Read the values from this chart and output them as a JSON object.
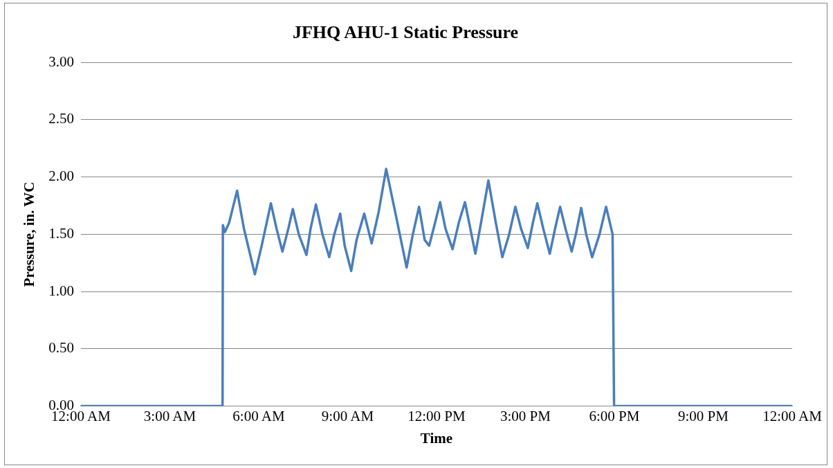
{
  "chart_data": {
    "type": "line",
    "title": "JFHQ AHU-1 Static Pressure",
    "xlabel": "Time",
    "ylabel": "Pressure, in. WC",
    "x": [
      0,
      4.78,
      4.79,
      4.86,
      5.0,
      5.27,
      5.5,
      5.87,
      6.1,
      6.41,
      6.6,
      6.8,
      7.0,
      7.15,
      7.35,
      7.61,
      7.75,
      7.93,
      8.15,
      8.38,
      8.55,
      8.75,
      8.9,
      9.12,
      9.3,
      9.56,
      9.81,
      10.05,
      10.3,
      10.6,
      10.99,
      11.2,
      11.41,
      11.6,
      11.75,
      11.95,
      12.12,
      12.3,
      12.54,
      12.75,
      12.96,
      13.1,
      13.31,
      13.5,
      13.75,
      14.0,
      14.22,
      14.45,
      14.66,
      14.85,
      15.08,
      15.25,
      15.4,
      15.6,
      15.82,
      16.0,
      16.17,
      16.35,
      16.56,
      16.7,
      16.88,
      17.05,
      17.25,
      17.5,
      17.72,
      17.94,
      17.99,
      24
    ],
    "series": [
      {
        "color": "#4a7ebb",
        "values": [
          0,
          0,
          1.58,
          1.52,
          1.6,
          1.88,
          1.55,
          1.15,
          1.4,
          1.77,
          1.55,
          1.35,
          1.55,
          1.72,
          1.5,
          1.32,
          1.55,
          1.76,
          1.5,
          1.3,
          1.5,
          1.68,
          1.4,
          1.18,
          1.45,
          1.68,
          1.42,
          1.7,
          2.07,
          1.7,
          1.21,
          1.5,
          1.74,
          1.45,
          1.4,
          1.6,
          1.78,
          1.55,
          1.37,
          1.6,
          1.78,
          1.6,
          1.33,
          1.6,
          1.97,
          1.6,
          1.3,
          1.5,
          1.74,
          1.55,
          1.38,
          1.6,
          1.77,
          1.55,
          1.33,
          1.55,
          1.74,
          1.55,
          1.35,
          1.5,
          1.73,
          1.5,
          1.3,
          1.5,
          1.74,
          1.5,
          0,
          0
        ]
      }
    ],
    "xlim": [
      0,
      24
    ],
    "xticks": [
      {
        "value": 0,
        "label": "12:00 AM"
      },
      {
        "value": 3,
        "label": "3:00 AM"
      },
      {
        "value": 6,
        "label": "6:00 AM"
      },
      {
        "value": 9,
        "label": "9:00 AM"
      },
      {
        "value": 12,
        "label": "12:00 PM"
      },
      {
        "value": 15,
        "label": "3:00 PM"
      },
      {
        "value": 18,
        "label": "6:00 PM"
      },
      {
        "value": 21,
        "label": "9:00 PM"
      },
      {
        "value": 24,
        "label": "12:00 AM"
      }
    ],
    "ylim": [
      0,
      3
    ],
    "yticks": [
      {
        "value": 0,
        "label": "0.00"
      },
      {
        "value": 0.5,
        "label": "0.50"
      },
      {
        "value": 1,
        "label": "1.00"
      },
      {
        "value": 1.5,
        "label": "1.50"
      },
      {
        "value": 2,
        "label": "2.00"
      },
      {
        "value": 2.5,
        "label": "2.50"
      },
      {
        "value": 3,
        "label": "3.00"
      }
    ],
    "grid": "y",
    "legend": false,
    "marker": "none",
    "line_style": "solid"
  }
}
